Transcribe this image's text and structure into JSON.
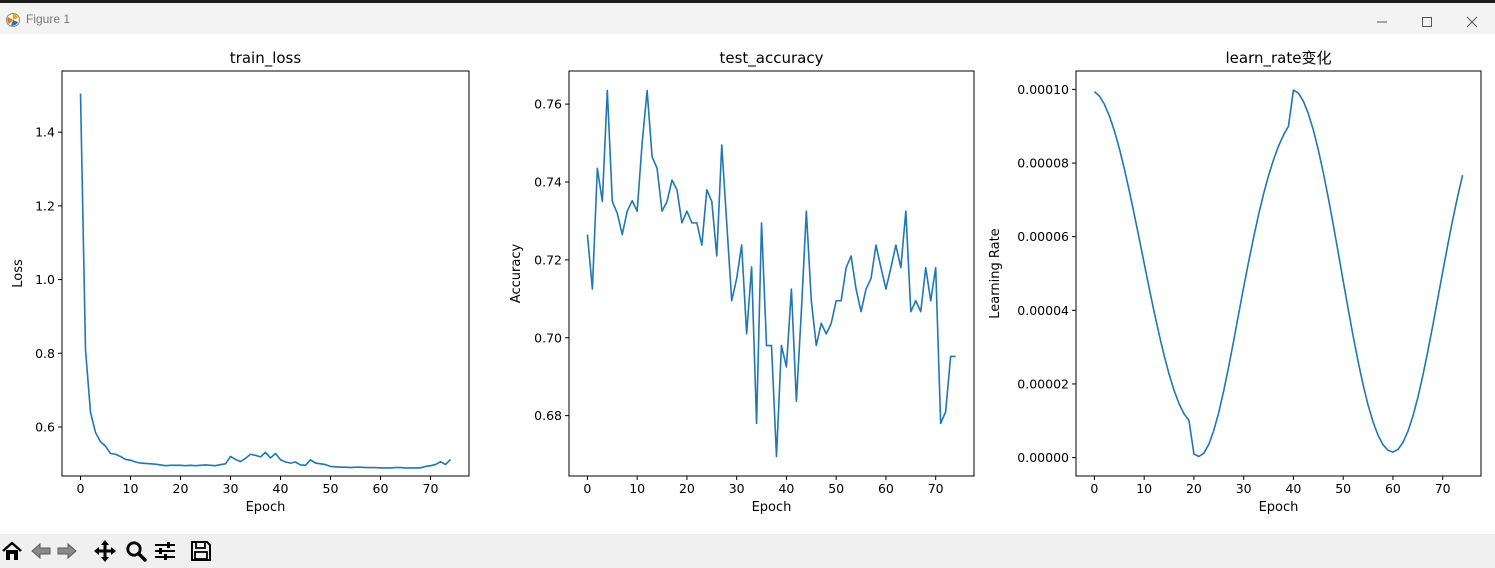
{
  "window": {
    "title": "Figure 1",
    "controls": [
      "minimize",
      "maximize",
      "close"
    ]
  },
  "colors": {
    "line": "#1f77b4",
    "axes": "#000000",
    "titlebar": "#f3f3f3",
    "toolbar": "#f0f0f0"
  },
  "toolbar": {
    "icons": [
      "home-icon",
      "back-arrow-icon",
      "forward-arrow-icon",
      "pan-move-icon",
      "zoom-magnifier-icon",
      "configure-subplots-icon",
      "save-floppy-icon"
    ]
  },
  "chart_data": [
    {
      "type": "line",
      "title": "train_loss",
      "xlabel": "Epoch",
      "ylabel": "Loss",
      "xlim": [
        -3.7,
        77.7
      ],
      "ylim": [
        0.467,
        1.566
      ],
      "xticks": [
        0,
        10,
        20,
        30,
        40,
        50,
        60,
        70
      ],
      "yticks": [
        0.6,
        0.8,
        1.0,
        1.2,
        1.4
      ],
      "ytick_labels": [
        "0.6",
        "0.8",
        "1.0",
        "1.2",
        "1.4"
      ],
      "grid": false,
      "x": [
        0,
        1,
        2,
        3,
        4,
        5,
        6,
        7,
        8,
        9,
        10,
        11,
        12,
        13,
        14,
        15,
        16,
        17,
        18,
        19,
        20,
        21,
        22,
        23,
        24,
        25,
        26,
        27,
        28,
        29,
        30,
        31,
        32,
        33,
        34,
        35,
        36,
        37,
        38,
        39,
        40,
        41,
        42,
        43,
        44,
        45,
        46,
        47,
        48,
        49,
        50,
        51,
        52,
        53,
        54,
        55,
        56,
        57,
        58,
        59,
        60,
        61,
        62,
        63,
        64,
        65,
        66,
        67,
        68,
        69,
        70,
        71,
        72,
        73,
        74
      ],
      "values": [
        1.505,
        0.81,
        0.64,
        0.585,
        0.56,
        0.548,
        0.528,
        0.526,
        0.52,
        0.512,
        0.51,
        0.505,
        0.502,
        0.501,
        0.5,
        0.499,
        0.497,
        0.495,
        0.496,
        0.496,
        0.496,
        0.495,
        0.496,
        0.495,
        0.496,
        0.497,
        0.496,
        0.495,
        0.498,
        0.5,
        0.52,
        0.512,
        0.506,
        0.515,
        0.526,
        0.523,
        0.519,
        0.531,
        0.516,
        0.528,
        0.511,
        0.505,
        0.502,
        0.505,
        0.497,
        0.496,
        0.511,
        0.502,
        0.5,
        0.498,
        0.493,
        0.492,
        0.491,
        0.491,
        0.49,
        0.491,
        0.491,
        0.49,
        0.49,
        0.49,
        0.489,
        0.489,
        0.489,
        0.49,
        0.49,
        0.489,
        0.489,
        0.489,
        0.489,
        0.493,
        0.495,
        0.498,
        0.506,
        0.498,
        0.512
      ]
    },
    {
      "type": "line",
      "title": "test_accuracy",
      "xlabel": "Epoch",
      "ylabel": "Accuracy",
      "xlim": [
        -3.7,
        77.7
      ],
      "ylim": [
        0.6645,
        0.7685
      ],
      "xticks": [
        0,
        10,
        20,
        30,
        40,
        50,
        60,
        70
      ],
      "yticks": [
        0.68,
        0.7,
        0.72,
        0.74,
        0.76
      ],
      "ytick_labels": [
        "0.68",
        "0.70",
        "0.72",
        "0.74",
        "0.76"
      ],
      "grid": false,
      "x": [
        0,
        1,
        2,
        3,
        4,
        5,
        6,
        7,
        8,
        9,
        10,
        11,
        12,
        13,
        14,
        15,
        16,
        17,
        18,
        19,
        20,
        21,
        22,
        23,
        24,
        25,
        26,
        27,
        28,
        29,
        30,
        31,
        32,
        33,
        34,
        35,
        36,
        37,
        38,
        39,
        40,
        41,
        42,
        43,
        44,
        45,
        46,
        47,
        48,
        49,
        50,
        51,
        52,
        53,
        54,
        55,
        56,
        57,
        58,
        59,
        60,
        61,
        62,
        63,
        64,
        65,
        66,
        67,
        68,
        69,
        70,
        71,
        72,
        73,
        74
      ],
      "values": [
        0.7265,
        0.7125,
        0.7435,
        0.735,
        0.7635,
        0.735,
        0.732,
        0.7265,
        0.7325,
        0.7352,
        0.7325,
        0.75,
        0.7635,
        0.7465,
        0.7435,
        0.7325,
        0.735,
        0.7405,
        0.738,
        0.7295,
        0.7325,
        0.7295,
        0.7295,
        0.7238,
        0.738,
        0.735,
        0.721,
        0.7495,
        0.7295,
        0.7095,
        0.7152,
        0.7238,
        0.701,
        0.7182,
        0.678,
        0.7295,
        0.698,
        0.698,
        0.6695,
        0.698,
        0.6925,
        0.7125,
        0.6837,
        0.7067,
        0.7325,
        0.7095,
        0.698,
        0.7037,
        0.701,
        0.7037,
        0.7095,
        0.7095,
        0.718,
        0.721,
        0.7125,
        0.7067,
        0.7125,
        0.7152,
        0.7238,
        0.718,
        0.7125,
        0.718,
        0.7238,
        0.718,
        0.7325,
        0.7067,
        0.7095,
        0.7067,
        0.718,
        0.7095,
        0.718,
        0.678,
        0.681,
        0.6952,
        0.6952
      ]
    },
    {
      "type": "line",
      "title": "learn_rate变化",
      "xlabel": "Epoch",
      "ylabel": "Learning Rate",
      "xlim": [
        -3.7,
        77.7
      ],
      "ylim": [
        -5e-06,
        0.000105
      ],
      "xticks": [
        0,
        10,
        20,
        30,
        40,
        50,
        60,
        70
      ],
      "yticks": [
        0.0,
        2e-05,
        4e-05,
        6e-05,
        8e-05,
        0.0001
      ],
      "ytick_labels": [
        "0.00000",
        "0.00002",
        "0.00004",
        "0.00006",
        "0.00008",
        "0.00010"
      ],
      "grid": false,
      "x": [
        0,
        1,
        2,
        3,
        4,
        5,
        6,
        7,
        8,
        9,
        10,
        11,
        12,
        13,
        14,
        15,
        16,
        17,
        18,
        19,
        20,
        21,
        22,
        23,
        24,
        25,
        26,
        27,
        28,
        29,
        30,
        31,
        32,
        33,
        34,
        35,
        36,
        37,
        38,
        39,
        40,
        41,
        42,
        43,
        44,
        45,
        46,
        47,
        48,
        49,
        50,
        51,
        52,
        53,
        54,
        55,
        56,
        57,
        58,
        59,
        60,
        61,
        62,
        63,
        64,
        65,
        66,
        67,
        68,
        69,
        70,
        71,
        72,
        73,
        74
      ],
      "values": [
        9.94e-05,
        9.82e-05,
        9.6e-05,
        9.28e-05,
        8.88e-05,
        8.4e-05,
        7.85e-05,
        7.25e-05,
        6.61e-05,
        5.95e-05,
        5.28e-05,
        4.61e-05,
        3.96e-05,
        3.35e-05,
        2.78e-05,
        2.27e-05,
        1.83e-05,
        1.47e-05,
        1.19e-05,
        1.01e-05,
        1e-06,
        3e-07,
        1.2e-06,
        3.6e-06,
        7.4e-06,
        1.23e-05,
        1.82e-05,
        2.48e-05,
        3.18e-05,
        3.91e-05,
        4.63e-05,
        5.32e-05,
        5.98e-05,
        6.6e-05,
        7.16e-05,
        7.66e-05,
        8.09e-05,
        8.46e-05,
        8.76e-05,
        9e-05,
        9.98e-05,
        9.9e-05,
        9.68e-05,
        9.34e-05,
        8.9e-05,
        8.36e-05,
        7.74e-05,
        7.06e-05,
        6.33e-05,
        5.57e-05,
        4.8e-05,
        4.04e-05,
        3.3e-05,
        2.61e-05,
        1.98e-05,
        1.43e-05,
        9.7e-06,
        6.1e-06,
        3.5e-06,
        2e-06,
        1.5e-06,
        2.2e-06,
        4.1e-06,
        7.1e-06,
        1.12e-05,
        1.63e-05,
        2.22e-05,
        2.88e-05,
        3.58e-05,
        4.31e-05,
        5.04e-05,
        5.76e-05,
        6.45e-05,
        7.09e-05,
        7.67e-05
      ]
    }
  ]
}
